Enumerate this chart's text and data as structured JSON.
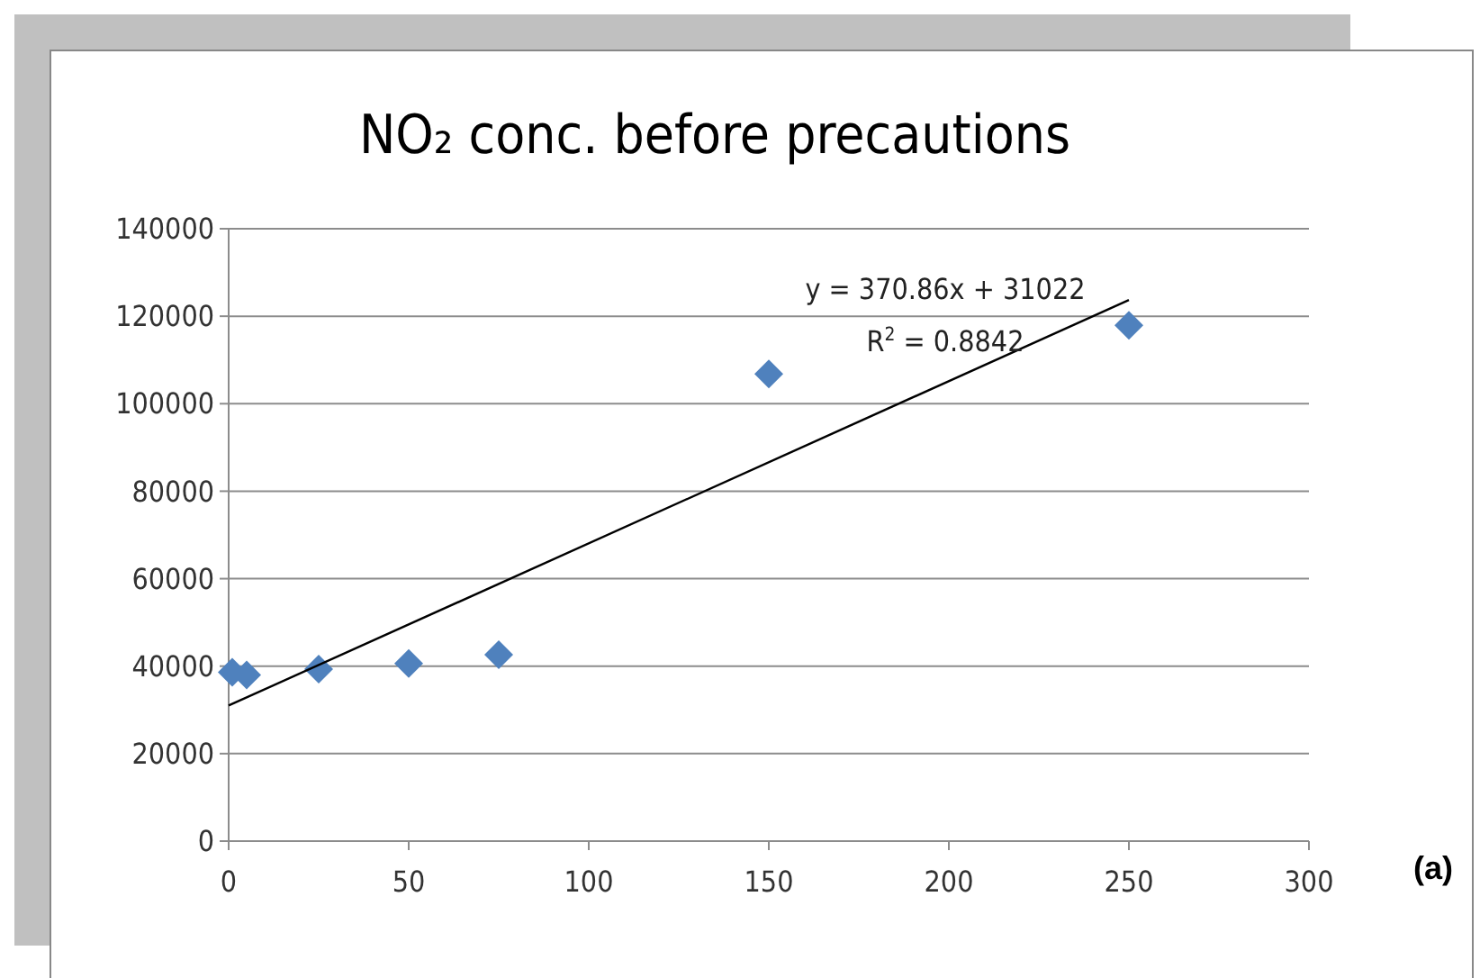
{
  "chart_data": {
    "type": "scatter",
    "title": "NO₂ conc. before precautions",
    "x": [
      1,
      5,
      25,
      50,
      75,
      150,
      250
    ],
    "series": [
      {
        "color": "#4f81bd",
        "marker": "diamond",
        "values": [
          38600,
          38000,
          39300,
          40600,
          42600,
          106800,
          117900
        ]
      },
      {
        "type": "line",
        "color": "#000000",
        "marker": "none",
        "x": [
          0,
          250
        ],
        "values": [
          31000,
          123700
        ]
      }
    ],
    "xlim": [
      0,
      300
    ],
    "xticks": [
      0,
      50,
      100,
      150,
      200,
      250,
      300
    ],
    "ylim": [
      0,
      140000
    ],
    "yticks": [
      0,
      20000,
      40000,
      60000,
      80000,
      100000,
      120000,
      140000
    ],
    "grid": "y",
    "annotations": [
      "y = 370.86x + 31022",
      "R$^{2}$ = 0.8842",
      "(a)"
    ]
  }
}
